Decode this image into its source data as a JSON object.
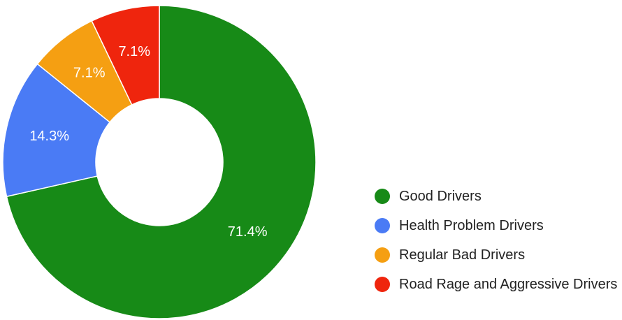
{
  "chart_data": {
    "type": "pie",
    "categories": [
      "Good Drivers",
      "Health Problem Drivers",
      "Regular Bad Drivers",
      "Road Rage and Aggressive Drivers"
    ],
    "values": [
      71.4,
      14.3,
      7.1,
      7.1
    ],
    "value_labels": [
      "71.4%",
      "14.3%",
      "7.1%",
      "7.1%"
    ],
    "colors": [
      "#178a17",
      "#4a7bf5",
      "#f59f12",
      "#ef250d"
    ],
    "donut": true,
    "legend": "right"
  }
}
